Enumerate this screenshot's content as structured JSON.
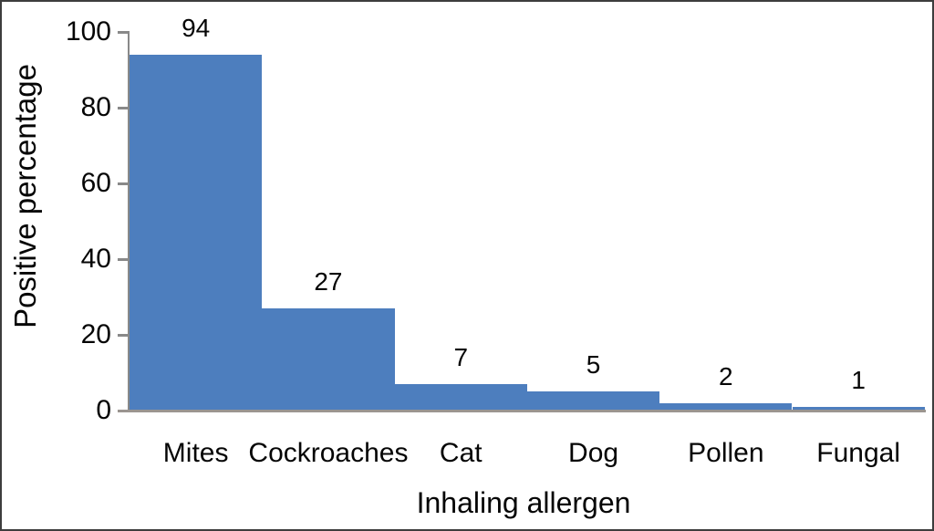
{
  "chart_data": {
    "type": "bar",
    "categories": [
      "Mites",
      "Cockroaches",
      "Cat",
      "Dog",
      "Pollen",
      "Fungal"
    ],
    "values": [
      94,
      27,
      7,
      5,
      2,
      1
    ],
    "data_labels": [
      "94",
      "27",
      "7",
      "5",
      "2",
      "1"
    ],
    "xlabel": "Inhaling allergen",
    "ylabel": "Positive percentage",
    "ylim": [
      0,
      100
    ],
    "yticks": [
      0,
      20,
      40,
      60,
      80,
      100
    ],
    "grid": false,
    "legend": false,
    "bar_gap": 0,
    "colors": {
      "bar": "#4d7ebe",
      "axis": "#898989",
      "baseline": "#9b9590",
      "text": "#050505",
      "frame_border": "#3d3d3d",
      "background": "#ffffff"
    }
  }
}
